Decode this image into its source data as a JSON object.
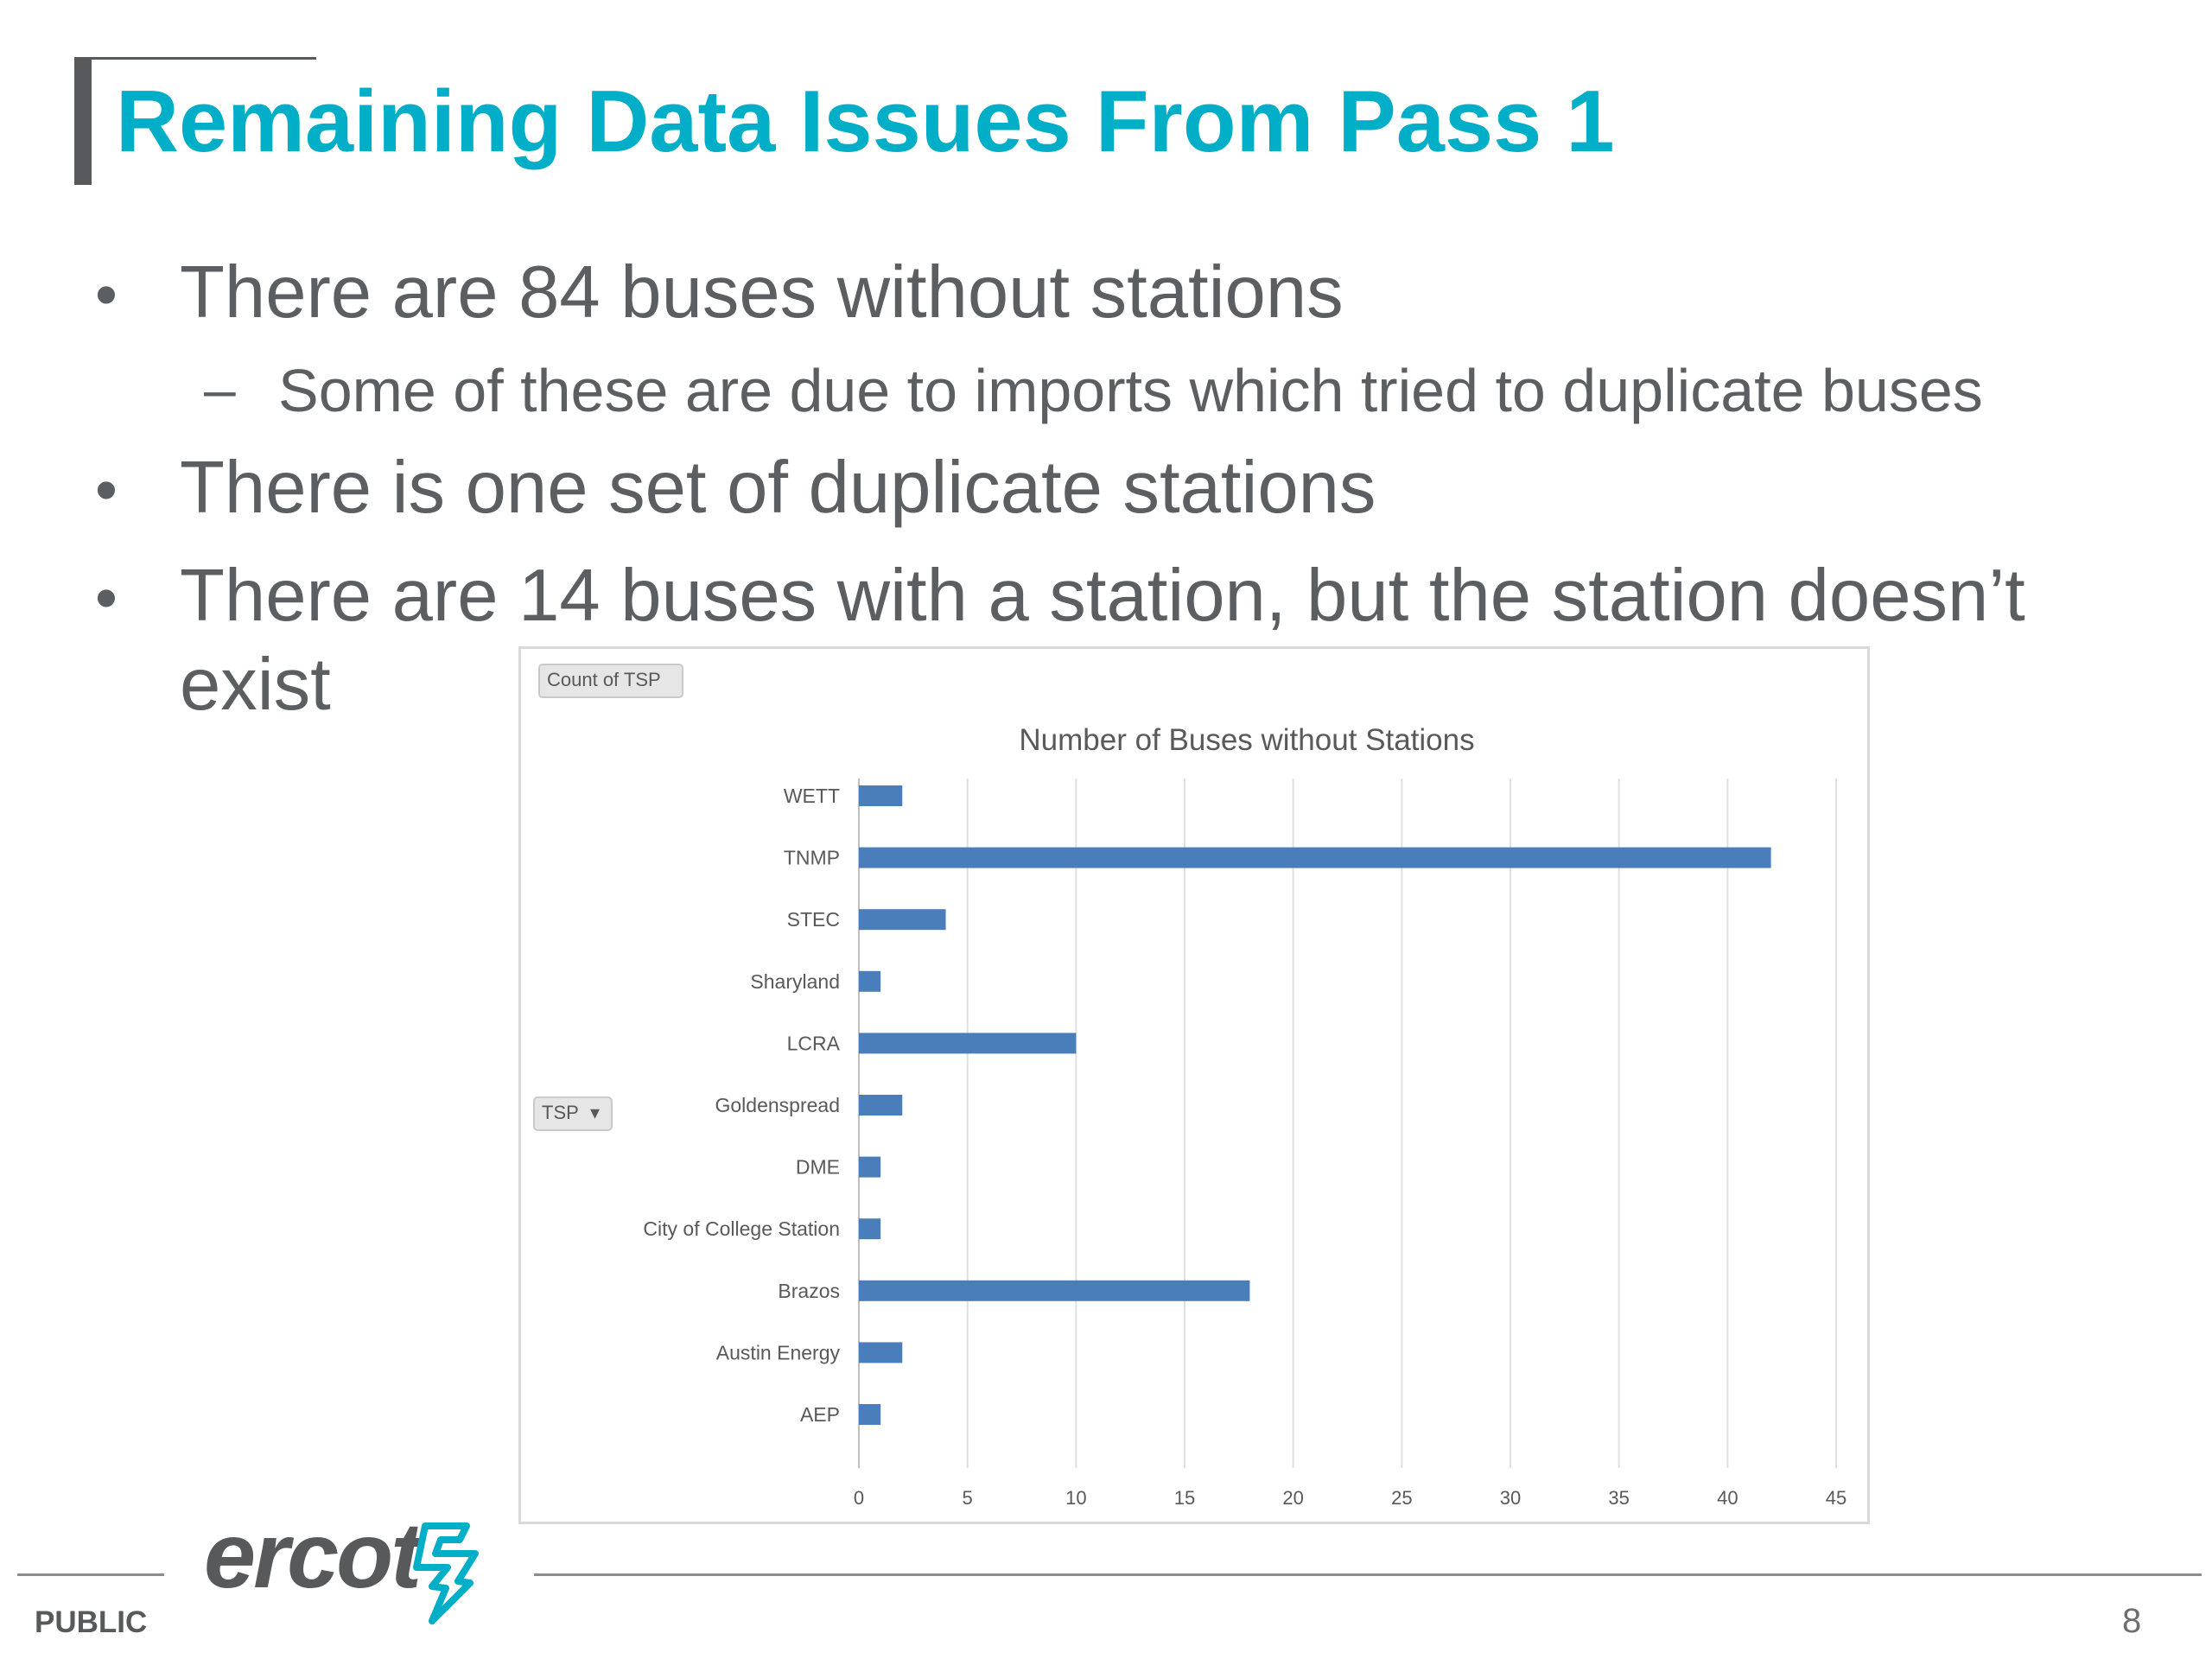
{
  "slide": {
    "title": "Remaining Data Issues From Pass 1",
    "bullets": [
      {
        "text": "There are 84 buses without stations",
        "sub": [
          "Some of these are due to imports which tried to duplicate buses"
        ]
      },
      {
        "text": "There is one set of duplicate stations"
      },
      {
        "text_line1": "There are 14 buses with a station, but the station doesn’t",
        "text_line2": "exist"
      }
    ],
    "bullet_glyph": "•",
    "dash_glyph": "–"
  },
  "pivot": {
    "count_button": "Count of TSP",
    "field_button": "TSP",
    "dropdown_glyph": "▾"
  },
  "chart_data": {
    "type": "bar",
    "orientation": "horizontal",
    "title": "Number of Buses without Stations",
    "categories": [
      "WETT",
      "TNMP",
      "STEC",
      "Sharyland",
      "LCRA",
      "Goldenspread",
      "DME",
      "City of College Station",
      "Brazos",
      "Austin Energy",
      "AEP"
    ],
    "values": [
      2,
      42,
      4,
      1,
      10,
      2,
      1,
      1,
      18,
      2,
      1
    ],
    "xticks": [
      0,
      5,
      10,
      15,
      20,
      25,
      30,
      35,
      40,
      45
    ],
    "xlim": [
      0,
      45
    ],
    "grid": true,
    "bar_color": "#4a7ebb",
    "grid_color": "#e0e0e0"
  },
  "footer": {
    "classification": "PUBLIC",
    "page_number": "8",
    "logo_text": "ercot"
  },
  "colors": {
    "title": "#00aec7",
    "body_text": "#5b5f62",
    "logo_accent": "#00aec7"
  }
}
